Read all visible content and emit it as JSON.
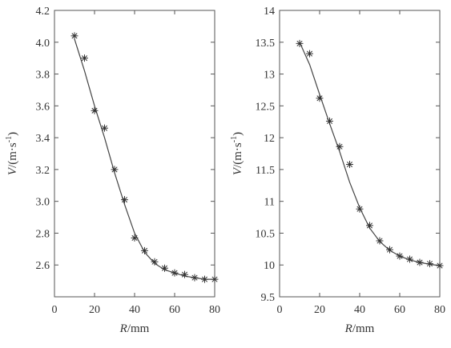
{
  "chart_data": [
    {
      "type": "scatter",
      "xlabel_var": "R",
      "xlabel_unit": "/mm",
      "ylabel_var": "V",
      "ylabel_unit": "/(m·s",
      "ylabel_exp": "-1",
      "ylabel_close": ")",
      "xlim": [
        0,
        80
      ],
      "ylim": [
        2.4,
        4.2
      ],
      "xticks": [
        0,
        20,
        40,
        60,
        80
      ],
      "xtick_labels": [
        "0",
        "20",
        "40",
        "60",
        "80"
      ],
      "yticks": [
        2.6,
        2.8,
        3.0,
        3.2,
        3.4,
        3.6,
        3.8,
        4.0,
        4.2
      ],
      "ytick_labels": [
        "2.6",
        "2.8",
        "3.0",
        "3.2",
        "3.4",
        "3.6",
        "3.8",
        "4.0",
        "4.2"
      ],
      "grid": false,
      "series": [
        {
          "kind": "markers",
          "marker": "star",
          "x": [
            10,
            15,
            20,
            25,
            30,
            35,
            40,
            45,
            50,
            55,
            60,
            65,
            70,
            75,
            80
          ],
          "y": [
            4.04,
            3.9,
            3.57,
            3.46,
            3.2,
            3.01,
            2.77,
            2.69,
            2.62,
            2.58,
            2.55,
            2.54,
            2.52,
            2.51,
            2.51
          ]
        },
        {
          "kind": "fit-line",
          "x": [
            10,
            15,
            20,
            25,
            30,
            35,
            40,
            45,
            50,
            55,
            60,
            65,
            70,
            75,
            80
          ],
          "y": [
            4.02,
            3.82,
            3.6,
            3.4,
            3.18,
            2.98,
            2.8,
            2.68,
            2.61,
            2.57,
            2.55,
            2.53,
            2.52,
            2.51,
            2.51
          ]
        }
      ]
    },
    {
      "type": "scatter",
      "xlabel_var": "R",
      "xlabel_unit": "/mm",
      "ylabel_var": "V",
      "ylabel_unit": "/(m·s",
      "ylabel_exp": "-1",
      "ylabel_close": ")",
      "xlim": [
        0,
        80
      ],
      "ylim": [
        9.5,
        14
      ],
      "xticks": [
        0,
        20,
        40,
        60,
        80
      ],
      "xtick_labels": [
        "0",
        "20",
        "40",
        "60",
        "80"
      ],
      "yticks": [
        9.5,
        10,
        10.5,
        11,
        11.5,
        12,
        12.5,
        13,
        13.5,
        14
      ],
      "ytick_labels": [
        "9.5",
        "10",
        "10.5",
        "11",
        "11.5",
        "12",
        "12.5",
        "13",
        "13.5",
        "14"
      ],
      "grid": false,
      "series": [
        {
          "kind": "markers",
          "marker": "star",
          "x": [
            10,
            15,
            20,
            25,
            30,
            35,
            40,
            45,
            50,
            55,
            60,
            65,
            70,
            75,
            80
          ],
          "y": [
            13.48,
            13.32,
            12.62,
            12.26,
            11.86,
            11.58,
            10.88,
            10.62,
            10.38,
            10.24,
            10.14,
            10.09,
            10.04,
            10.02,
            9.99
          ]
        },
        {
          "kind": "fit-line",
          "x": [
            10,
            15,
            20,
            25,
            30,
            35,
            40,
            45,
            50,
            55,
            60,
            65,
            70,
            75,
            80
          ],
          "y": [
            13.5,
            13.15,
            12.68,
            12.22,
            11.78,
            11.3,
            10.9,
            10.58,
            10.37,
            10.23,
            10.14,
            10.08,
            10.04,
            10.01,
            9.99
          ]
        }
      ]
    }
  ]
}
